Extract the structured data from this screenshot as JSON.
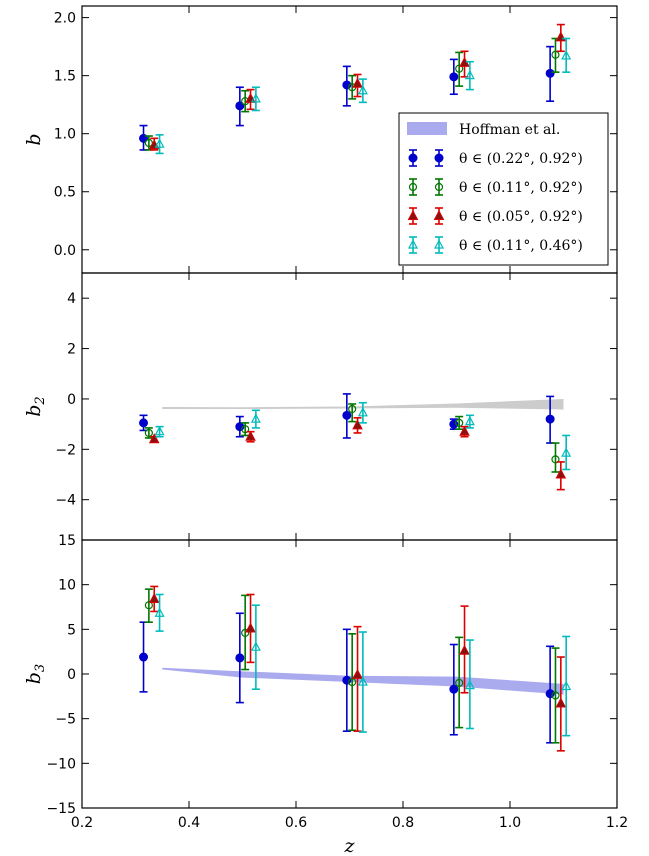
{
  "chart_data": [
    {
      "type": "scatter",
      "panel": "b",
      "ylabel": "b",
      "ylabel_sub": "",
      "xlim": [
        0.2,
        1.2
      ],
      "ylim": [
        -0.2,
        2.1
      ],
      "yticks": [
        "0.0",
        "0.5",
        "1.0",
        "1.5",
        "2.0"
      ],
      "ytick_values": [
        0.0,
        0.5,
        1.0,
        1.5,
        2.0
      ],
      "series": [
        {
          "name": "θ ∈ (0.22°, 0.92°)",
          "x": [
            0.315,
            0.495,
            0.695,
            0.895,
            1.075
          ],
          "y": [
            0.96,
            1.24,
            1.42,
            1.49,
            1.52
          ],
          "lo": [
            0.86,
            1.07,
            1.24,
            1.34,
            1.28
          ],
          "hi": [
            1.07,
            1.4,
            1.58,
            1.64,
            1.75
          ]
        },
        {
          "name": "θ ∈ (0.11°, 0.92°)",
          "x": [
            0.325,
            0.505,
            0.705,
            0.905,
            1.085
          ],
          "y": [
            0.92,
            1.28,
            1.4,
            1.56,
            1.68
          ],
          "lo": [
            0.86,
            1.19,
            1.3,
            1.41,
            1.53
          ],
          "hi": [
            0.98,
            1.37,
            1.5,
            1.7,
            1.82
          ]
        },
        {
          "name": "θ ∈ (0.05°, 0.92°)",
          "x": [
            0.335,
            0.515,
            0.715,
            0.915,
            1.095
          ],
          "y": [
            0.9,
            1.3,
            1.43,
            1.61,
            1.83
          ],
          "lo": [
            0.86,
            1.21,
            1.32,
            1.49,
            1.71
          ],
          "hi": [
            0.96,
            1.38,
            1.51,
            1.71,
            1.94
          ]
        },
        {
          "name": "θ ∈ (0.11°, 0.46°)",
          "x": [
            0.345,
            0.525,
            0.725,
            0.925,
            1.105
          ],
          "y": [
            0.91,
            1.3,
            1.37,
            1.5,
            1.67
          ],
          "lo": [
            0.83,
            1.2,
            1.27,
            1.38,
            1.53
          ],
          "hi": [
            0.99,
            1.4,
            1.47,
            1.62,
            1.82
          ]
        }
      ],
      "legend": {
        "placement": "right",
        "band_label": "Hoffman et al."
      }
    },
    {
      "type": "scatter",
      "panel": "b2",
      "ylabel": "b",
      "ylabel_sub": "2",
      "xlim": [
        0.2,
        1.2
      ],
      "ylim": [
        -5.6,
        5.0
      ],
      "yticks": [
        "−4",
        "−2",
        "0",
        "2",
        "4"
      ],
      "ytick_values": [
        -4,
        -2,
        0,
        2,
        4
      ],
      "band": {
        "x": [
          0.35,
          0.5,
          0.7,
          0.9,
          1.1
        ],
        "lo": [
          -0.4,
          -0.4,
          -0.38,
          -0.35,
          -0.42
        ],
        "hi": [
          -0.32,
          -0.33,
          -0.3,
          -0.18,
          0.0
        ]
      },
      "series": [
        {
          "name": "θ ∈ (0.22°, 0.92°)",
          "x": [
            0.315,
            0.495,
            0.695,
            0.895,
            1.075
          ],
          "y": [
            -0.95,
            -1.1,
            -0.65,
            -1.0,
            -0.8
          ],
          "lo": [
            -1.25,
            -1.5,
            -1.55,
            -1.2,
            -1.75
          ],
          "hi": [
            -0.65,
            -0.7,
            0.2,
            -0.8,
            0.1
          ]
        },
        {
          "name": "θ ∈ (0.11°, 0.92°)",
          "x": [
            0.325,
            0.505,
            0.705,
            0.905,
            1.085
          ],
          "y": [
            -1.35,
            -1.2,
            -0.4,
            -0.95,
            -2.4
          ],
          "lo": [
            -1.55,
            -1.45,
            -0.9,
            -1.2,
            -2.9
          ],
          "hi": [
            -1.15,
            -0.95,
            -0.2,
            -0.7,
            -1.75
          ]
        },
        {
          "name": "θ ∈ (0.05°, 0.92°)",
          "x": [
            0.335,
            0.515,
            0.715,
            0.915,
            1.095
          ],
          "y": [
            -1.6,
            -1.5,
            -1.05,
            -1.3,
            -3.0
          ],
          "lo": [
            -1.7,
            -1.7,
            -1.35,
            -1.5,
            -3.6
          ],
          "hi": [
            -1.5,
            -1.3,
            -0.75,
            -1.1,
            -2.5
          ]
        },
        {
          "name": "θ ∈ (0.11°, 0.46°)",
          "x": [
            0.345,
            0.525,
            0.725,
            0.925,
            1.105
          ],
          "y": [
            -1.3,
            -0.8,
            -0.55,
            -0.9,
            -2.15
          ],
          "lo": [
            -1.5,
            -1.15,
            -0.95,
            -1.15,
            -2.8
          ],
          "hi": [
            -1.1,
            -0.45,
            -0.15,
            -0.65,
            -1.45
          ]
        }
      ]
    },
    {
      "type": "scatter",
      "panel": "b3",
      "ylabel": "b",
      "ylabel_sub": "3",
      "xlabel": "z",
      "xlim": [
        0.2,
        1.2
      ],
      "ylim": [
        -15,
        15
      ],
      "xticks": [
        "0.2",
        "0.4",
        "0.6",
        "0.8",
        "1.0",
        "1.2"
      ],
      "xtick_values": [
        0.2,
        0.4,
        0.6,
        0.8,
        1.0,
        1.2
      ],
      "yticks": [
        "−15",
        "−10",
        "−5",
        "0",
        "5",
        "10",
        "15"
      ],
      "ytick_values": [
        -15,
        -10,
        -5,
        0,
        5,
        10,
        15
      ],
      "band": {
        "x": [
          0.35,
          0.5,
          0.7,
          0.9,
          1.1
        ],
        "lo": [
          0.5,
          -0.4,
          -0.9,
          -1.4,
          -2.3
        ],
        "hi": [
          0.7,
          0.3,
          -0.2,
          -0.3,
          -1.1
        ]
      },
      "series": [
        {
          "name": "θ ∈ (0.22°, 0.92°)",
          "x": [
            0.315,
            0.495,
            0.695,
            0.895,
            1.075
          ],
          "y": [
            1.9,
            1.8,
            -0.7,
            -1.7,
            -2.2
          ],
          "lo": [
            -2.0,
            -3.2,
            -6.4,
            -6.8,
            -7.7
          ],
          "hi": [
            5.8,
            6.8,
            5.0,
            3.3,
            3.1
          ]
        },
        {
          "name": "θ ∈ (0.11°, 0.92°)",
          "x": [
            0.325,
            0.505,
            0.705,
            0.905,
            1.085
          ],
          "y": [
            7.7,
            4.6,
            -0.9,
            -1.0,
            -2.4
          ],
          "lo": [
            5.8,
            0.5,
            -6.3,
            -6.0,
            -7.7
          ],
          "hi": [
            9.5,
            8.8,
            4.5,
            4.1,
            2.9
          ]
        },
        {
          "name": "θ ∈ (0.05°, 0.92°)",
          "x": [
            0.335,
            0.515,
            0.715,
            0.915,
            1.095
          ],
          "y": [
            8.4,
            5.1,
            -0.1,
            2.6,
            -3.3
          ],
          "lo": [
            7.0,
            1.3,
            -6.4,
            -2.1,
            -8.6
          ],
          "hi": [
            9.8,
            8.9,
            5.3,
            7.6,
            1.9
          ]
        },
        {
          "name": "θ ∈ (0.11°, 0.46°)",
          "x": [
            0.345,
            0.525,
            0.725,
            0.925,
            1.105
          ],
          "y": [
            6.8,
            3.0,
            -0.9,
            -1.3,
            -1.4
          ],
          "lo": [
            4.8,
            -1.7,
            -6.5,
            -6.1,
            -6.9
          ],
          "hi": [
            8.9,
            7.7,
            4.7,
            3.8,
            4.2
          ]
        }
      ]
    }
  ],
  "colors": {
    "s0": "#0000cc",
    "s1": "#007700",
    "s2": "#dd0000",
    "s3": "#00bbbb",
    "band": "#aaaaee",
    "band_gray": "#cccccc",
    "tri_fill": "#881111"
  }
}
